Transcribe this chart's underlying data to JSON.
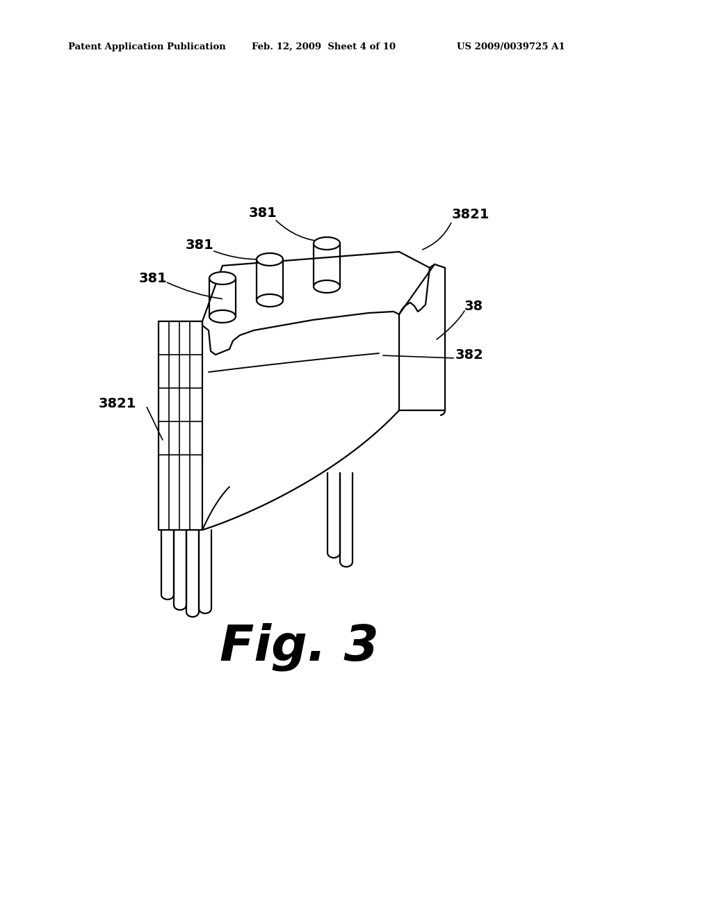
{
  "bg_color": "#ffffff",
  "header_left": "Patent Application Publication",
  "header_mid": "Feb. 12, 2009  Sheet 4 of 10",
  "header_right": "US 2009/0039725 A1",
  "fig_label": "Fig. 3",
  "line_color": "#000000",
  "line_width": 1.6,
  "text_color": "#000000",
  "label_fontsize": 14,
  "fig_fontsize": 52,
  "header_fontsize": 9.5
}
